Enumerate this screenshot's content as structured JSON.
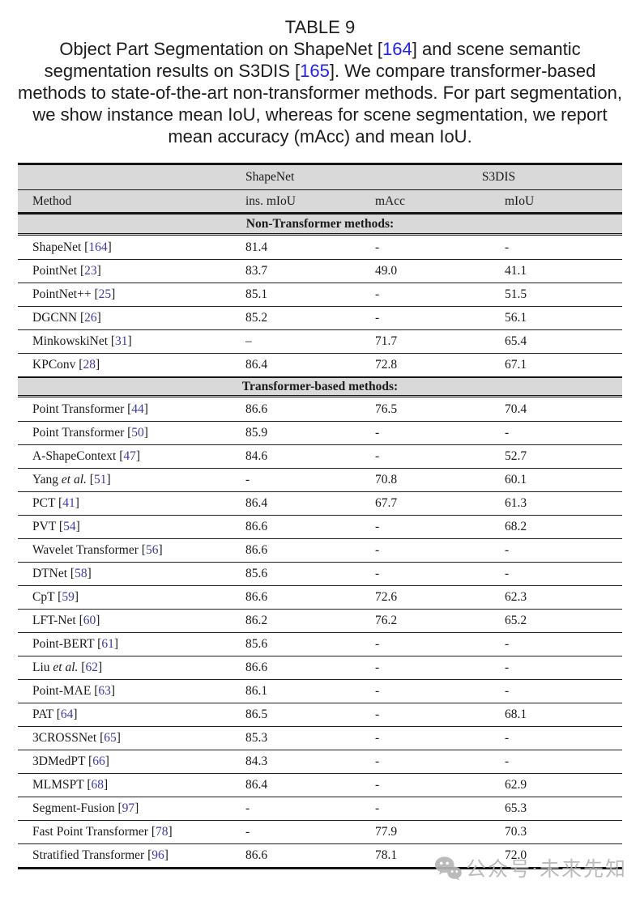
{
  "title": "TABLE 9",
  "caption": {
    "segments": [
      {
        "text": "Object Part Segmentation on ShapeNet ["
      },
      {
        "text": "164",
        "link": true
      },
      {
        "text": "] and scene semantic segmentation results on S3DIS ["
      },
      {
        "text": "165",
        "link": true
      },
      {
        "text": "]. We compare transformer-based methods to state-of-the-art non-transformer methods. For part segmentation, we show instance mean IoU, whereas for scene segmentation, we report mean accuracy (mAcc) and mean IoU."
      }
    ]
  },
  "table": {
    "group_headers": {
      "shapenet": "ShapeNet",
      "s3dis": "S3DIS"
    },
    "column_headers": [
      "Method",
      "ins. mIoU",
      "mAcc",
      "mIoU"
    ],
    "sections": [
      {
        "label": "Non-Transformer methods:",
        "rows": [
          {
            "method": "ShapeNet",
            "ref": "164",
            "values": [
              "81.4",
              "-",
              "-"
            ]
          },
          {
            "method": "PointNet",
            "ref": "23",
            "values": [
              "83.7",
              "49.0",
              "41.1"
            ]
          },
          {
            "method": "PointNet++",
            "ref": "25",
            "values": [
              "85.1",
              "-",
              "51.5"
            ]
          },
          {
            "method": "DGCNN",
            "ref": "26",
            "values": [
              "85.2",
              "-",
              "56.1"
            ]
          },
          {
            "method": "MinkowskiNet",
            "ref": "31",
            "values": [
              "–",
              "71.7",
              "65.4"
            ]
          },
          {
            "method": "KPConv",
            "ref": "28",
            "values": [
              "86.4",
              "72.8",
              "67.1"
            ]
          }
        ]
      },
      {
        "label": "Transformer-based methods:",
        "rows": [
          {
            "method": "Point Transformer",
            "ref": "44",
            "values": [
              "86.6",
              "76.5",
              "70.4"
            ]
          },
          {
            "method": "Point Transformer",
            "ref": "50",
            "values": [
              "85.9",
              "-",
              "-"
            ]
          },
          {
            "method": "A-ShapeContext",
            "ref": "47",
            "values": [
              "84.6",
              "-",
              "52.7"
            ]
          },
          {
            "method": "Yang",
            "italic": "et al.",
            "ref": "51",
            "values": [
              "-",
              "70.8",
              "60.1"
            ]
          },
          {
            "method": "PCT",
            "ref": "41",
            "values": [
              "86.4",
              "67.7",
              "61.3"
            ]
          },
          {
            "method": "PVT",
            "ref": "54",
            "values": [
              "86.6",
              "-",
              "68.2"
            ]
          },
          {
            "method": "Wavelet Transformer",
            "ref": "56",
            "values": [
              "86.6",
              "-",
              "-"
            ]
          },
          {
            "method": "DTNet",
            "ref": "58",
            "values": [
              "85.6",
              "-",
              "-"
            ]
          },
          {
            "method": "CpT",
            "ref": "59",
            "values": [
              "86.6",
              "72.6",
              "62.3"
            ]
          },
          {
            "method": "LFT-Net",
            "ref": "60",
            "values": [
              "86.2",
              "76.2",
              "65.2"
            ]
          },
          {
            "method": "Point-BERT",
            "ref": "61",
            "values": [
              "85.6",
              "-",
              "-"
            ]
          },
          {
            "method": "Liu",
            "italic": "et al.",
            "ref": "62",
            "values": [
              "86.6",
              "-",
              "-"
            ]
          },
          {
            "method": "Point-MAE",
            "ref": "63",
            "values": [
              "86.1",
              "-",
              "-"
            ]
          },
          {
            "method": "PAT",
            "ref": "64",
            "values": [
              "86.5",
              "-",
              "68.1"
            ]
          },
          {
            "method": "3CROSSNet",
            "ref": "65",
            "values": [
              "85.3",
              "-",
              "-"
            ]
          },
          {
            "method": "3DMedPT",
            "ref": "66",
            "values": [
              "84.3",
              "-",
              "-"
            ]
          },
          {
            "method": "MLMSPT",
            "ref": "68",
            "values": [
              "86.4",
              "-",
              "62.9"
            ]
          },
          {
            "method": "Segment-Fusion",
            "ref": "97",
            "values": [
              "-",
              "-",
              "65.3"
            ]
          },
          {
            "method": "Fast Point Transformer",
            "ref": "78",
            "values": [
              "-",
              "77.9",
              "70.3"
            ]
          },
          {
            "method": "Stratified Transformer",
            "ref": "96",
            "values": [
              "86.6",
              "78.1",
              "72.0"
            ]
          }
        ]
      }
    ]
  },
  "watermark": {
    "icon": "wechat-icon",
    "text": "公众号·未来先知"
  },
  "colors": {
    "header_bg": "#d9d9d9",
    "border": "#151515",
    "caption_link": "#2323dd",
    "table_ref": "#3c3c9c",
    "watermark": "#b6b6b6"
  }
}
